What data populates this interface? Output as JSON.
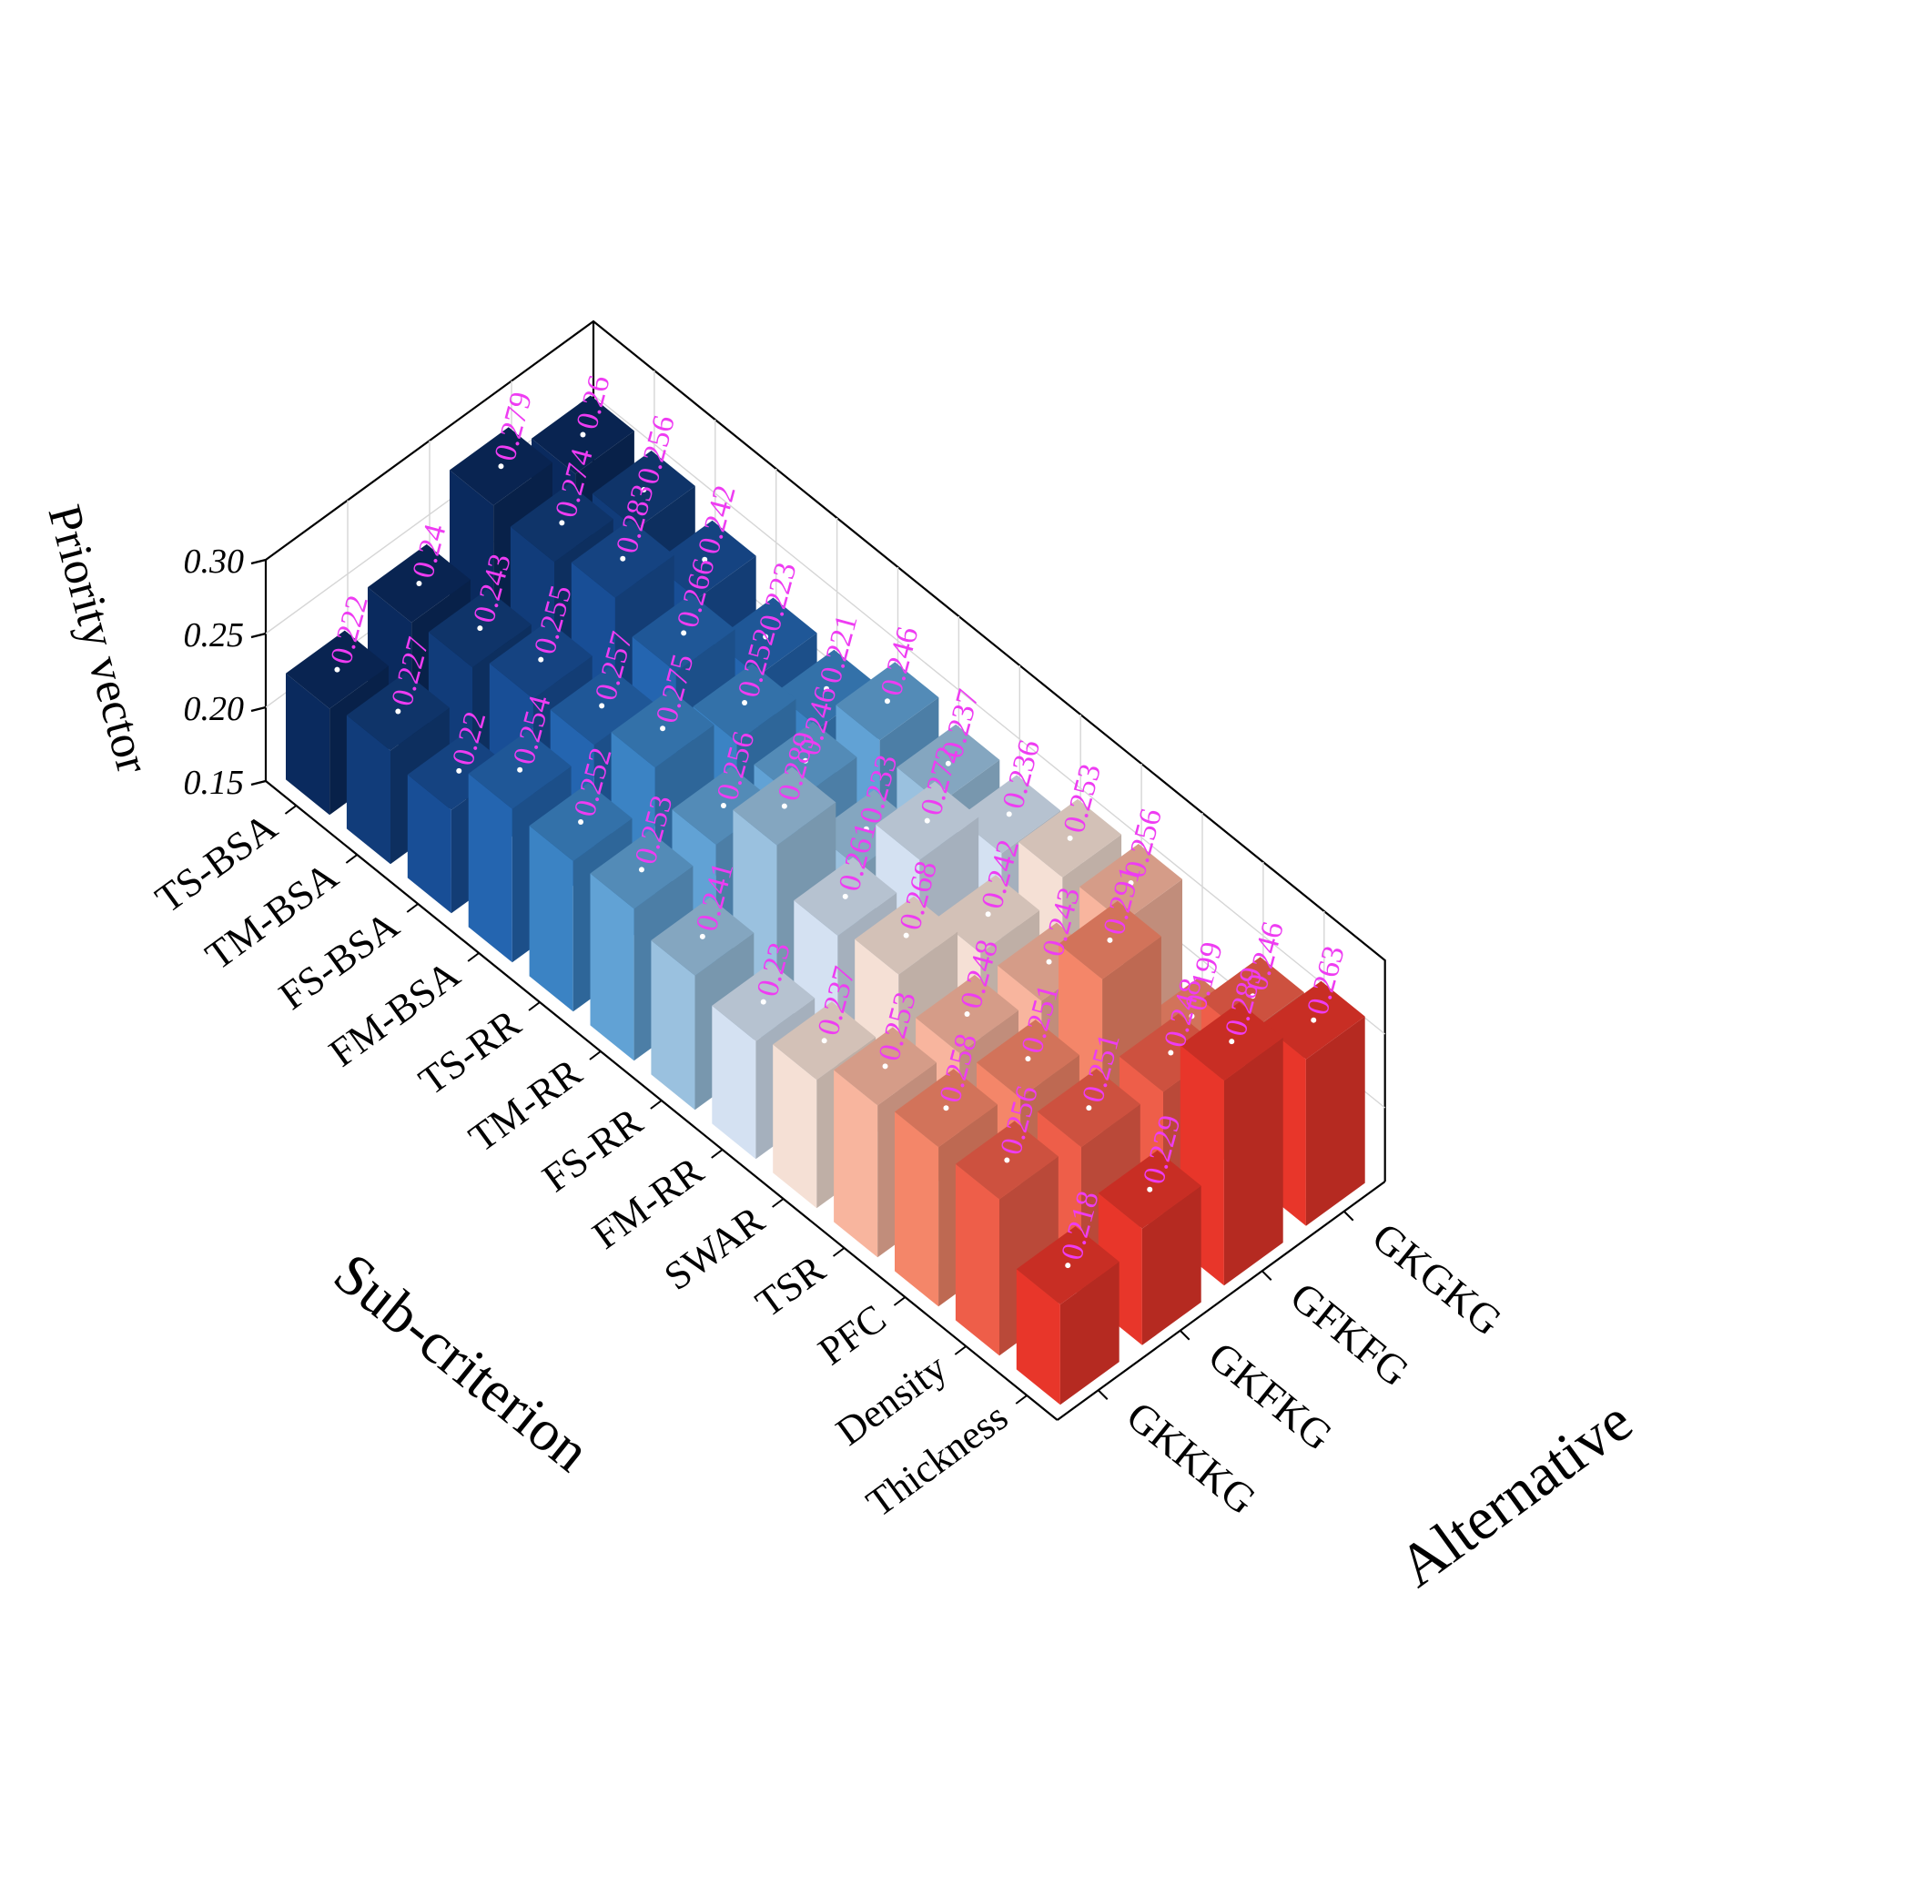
{
  "chart_data": {
    "type": "bar3d",
    "zlabel": "Priority vector",
    "xlabel": "Sub-criterion",
    "ylabel": "Alternative",
    "zlim": [
      0.15,
      0.3
    ],
    "zticks": [
      "0.15",
      "0.20",
      "0.25",
      "0.30"
    ],
    "grid": true,
    "categories": [
      "TS-BSA",
      "TM-BSA",
      "FS-BSA",
      "FM-BSA",
      "TS-RR",
      "TM-RR",
      "FS-RR",
      "FM-RR",
      "SWAR",
      "TSR",
      "PFC",
      "Density",
      "Thickness"
    ],
    "series": [
      {
        "name": "GKKKG",
        "values": [
          0.222,
          0.227,
          0.22,
          0.254,
          0.252,
          0.253,
          0.241,
          0.23,
          0.237,
          0.253,
          0.258,
          0.256,
          0.218
        ]
      },
      {
        "name": "GKFKG",
        "values": [
          0.24,
          0.243,
          0.255,
          0.257,
          0.275,
          0.256,
          0.289,
          0.261,
          0.268,
          0.248,
          0.251,
          0.251,
          0.229
        ]
      },
      {
        "name": "GFKFG",
        "values": [
          0.279,
          0.274,
          0.283,
          0.266,
          0.252,
          0.246,
          0.233,
          0.272,
          0.242,
          0.243,
          0.291,
          0.248,
          0.289
        ]
      },
      {
        "name": "GKGKG",
        "values": [
          0.26,
          0.256,
          0.242,
          0.223,
          0.221,
          0.246,
          0.237,
          0.236,
          0.253,
          0.256,
          0.199,
          0.246,
          0.263
        ]
      }
    ],
    "colors": {
      "low": "#0a2a5e",
      "mid": "#dfe8f6",
      "high": "#e8362a",
      "label": "#ee3cf2"
    }
  }
}
